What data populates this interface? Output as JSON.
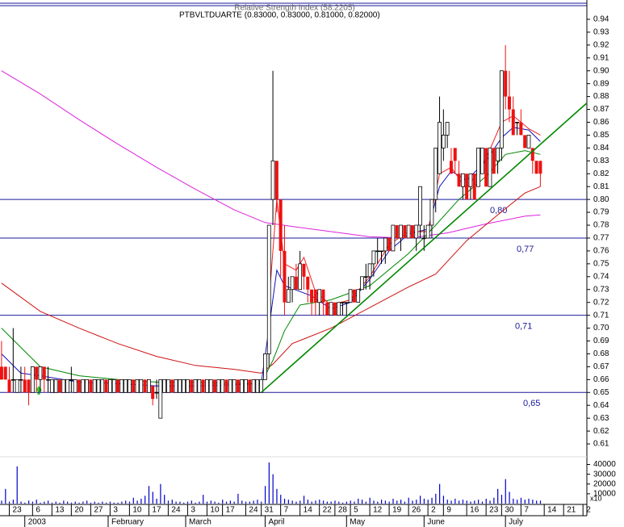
{
  "chart_data": {
    "type": "candlestick",
    "title": "PTBVLTDUARTE (0.83000, 0.83000, 0.81000, 0.82000)",
    "indicator_title": "Relative Strength Index (58.2205)",
    "xlim": [
      -0.4,
      151
    ],
    "ylim": [
      0.6,
      0.95
    ],
    "yticks": [
      0.94,
      0.93,
      0.92,
      0.91,
      {
        "value": 0.9,
        "label": "0.90"
      },
      0.89,
      0.88,
      0.87,
      0.86,
      0.85,
      0.84,
      0.83,
      0.82,
      0.81,
      {
        "value": 0.8,
        "label": "0.80"
      },
      0.79,
      0.78,
      0.77,
      0.76,
      0.75,
      0.74,
      0.73,
      0.72,
      0.71,
      {
        "value": 0.7,
        "label": "0.70"
      },
      0.69,
      0.68,
      0.67,
      0.66,
      0.65,
      0.64,
      0.63,
      0.62,
      0.61
    ],
    "xticks": [
      {
        "value": 2,
        "label": "23"
      },
      {
        "value": 8,
        "label": "6"
      },
      {
        "value": 13,
        "label": "13"
      },
      {
        "value": 18,
        "label": "20"
      },
      {
        "value": 23,
        "label": "27"
      },
      {
        "value": 28,
        "label": "3"
      },
      {
        "value": 33,
        "label": "10"
      },
      {
        "value": 38,
        "label": "17"
      },
      {
        "value": 43,
        "label": "24"
      },
      {
        "value": 48,
        "label": "3"
      },
      {
        "value": 53,
        "label": "10"
      },
      {
        "value": 57,
        "label": "17"
      },
      {
        "value": 63,
        "label": "24"
      },
      {
        "value": 67,
        "label": "31"
      },
      {
        "value": 72,
        "label": "7"
      },
      {
        "value": 77,
        "label": "14"
      },
      {
        "value": 82,
        "label": "22"
      },
      {
        "value": 86,
        "label": "28"
      },
      {
        "value": 90,
        "label": "5"
      },
      {
        "value": 95,
        "label": "12"
      },
      {
        "value": 100,
        "label": "19"
      },
      {
        "value": 105,
        "label": "26"
      },
      {
        "value": 110,
        "label": "2"
      },
      {
        "value": 114,
        "label": "9"
      },
      {
        "value": 120,
        "label": "16"
      },
      {
        "value": 125,
        "label": "23"
      },
      {
        "value": 129,
        "label": "30"
      },
      {
        "value": 134,
        "label": "7"
      },
      {
        "value": 140,
        "label": "14"
      },
      {
        "value": 145,
        "label": "21"
      },
      {
        "value": 150,
        "label": "2"
      }
    ],
    "month_ticks": [
      {
        "value": 6,
        "label": "2003"
      },
      {
        "value": 27.5,
        "label": "February"
      },
      {
        "value": 47.5,
        "label": "March"
      },
      {
        "value": 68,
        "label": "April"
      },
      {
        "value": 89,
        "label": "May"
      },
      {
        "value": 109,
        "label": "June"
      },
      {
        "value": 130,
        "label": "July"
      }
    ],
    "up_color": "#ffffff",
    "down_color": "#ee1111",
    "open": [
      0.67,
      0.67,
      0.66,
      0.66,
      0.65,
      0.66,
      0.66,
      0.66,
      0.65,
      0.67,
      0.66,
      0.67,
      0.66,
      0.65,
      0.65,
      0.66,
      0.65,
      0.65,
      0.66,
      0.65,
      0.66,
      0.65,
      0.65,
      0.66,
      0.65,
      0.65,
      0.65,
      0.66,
      0.65,
      0.65,
      0.66,
      0.65,
      0.65,
      0.65,
      0.66,
      0.65,
      0.65,
      0.66,
      0.65,
      0.655,
      0.65,
      0.63,
      0.65,
      0.65,
      0.66,
      0.65,
      0.65,
      0.65,
      0.65,
      0.66,
      0.65,
      0.65,
      0.66,
      0.65,
      0.65,
      0.66,
      0.65,
      0.65,
      0.66,
      0.65,
      0.65,
      0.66,
      0.65,
      0.65,
      0.66,
      0.65,
      0.65,
      0.65,
      0.66,
      0.68,
      0.8,
      0.83,
      0.8,
      0.76,
      0.72,
      0.73,
      0.74,
      0.73,
      0.75,
      0.74,
      0.73,
      0.73,
      0.72,
      0.73,
      0.72,
      0.71,
      0.72,
      0.71,
      0.72,
      0.72,
      0.72,
      0.73,
      0.72,
      0.73,
      0.74,
      0.74,
      0.75,
      0.76,
      0.76,
      0.76,
      0.77,
      0.76,
      0.78,
      0.77,
      0.78,
      0.77,
      0.78,
      0.77,
      0.78,
      0.77,
      0.77,
      0.78,
      0.8,
      0.82,
      0.84,
      0.85,
      0.83,
      0.84,
      0.82,
      0.81,
      0.82,
      0.81,
      0.82,
      0.81,
      0.82,
      0.84,
      0.81,
      0.84,
      0.83,
      0.84,
      0.9,
      0.88,
      0.87,
      0.86,
      0.86,
      0.85,
      0.84,
      0.84,
      0.83,
      0.83
    ],
    "high": [
      0.69,
      0.67,
      0.67,
      0.7,
      0.66,
      0.67,
      0.67,
      0.66,
      0.67,
      0.67,
      0.67,
      0.67,
      0.67,
      0.66,
      0.66,
      0.66,
      0.66,
      0.66,
      0.67,
      0.66,
      0.66,
      0.66,
      0.66,
      0.66,
      0.66,
      0.66,
      0.66,
      0.66,
      0.66,
      0.66,
      0.66,
      0.66,
      0.66,
      0.66,
      0.66,
      0.66,
      0.66,
      0.66,
      0.66,
      0.655,
      0.66,
      0.66,
      0.66,
      0.66,
      0.66,
      0.66,
      0.66,
      0.66,
      0.66,
      0.66,
      0.66,
      0.66,
      0.66,
      0.66,
      0.66,
      0.66,
      0.66,
      0.66,
      0.66,
      0.66,
      0.66,
      0.66,
      0.66,
      0.66,
      0.66,
      0.66,
      0.66,
      0.66,
      0.68,
      0.78,
      0.9,
      0.83,
      0.8,
      0.78,
      0.74,
      0.74,
      0.75,
      0.76,
      0.75,
      0.74,
      0.73,
      0.73,
      0.73,
      0.73,
      0.72,
      0.72,
      0.72,
      0.72,
      0.72,
      0.72,
      0.73,
      0.73,
      0.73,
      0.74,
      0.75,
      0.75,
      0.76,
      0.77,
      0.76,
      0.77,
      0.77,
      0.78,
      0.78,
      0.78,
      0.78,
      0.78,
      0.78,
      0.78,
      0.81,
      0.78,
      0.78,
      0.8,
      0.84,
      0.88,
      0.87,
      0.86,
      0.84,
      0.84,
      0.83,
      0.82,
      0.82,
      0.82,
      0.82,
      0.84,
      0.84,
      0.84,
      0.84,
      0.84,
      0.84,
      0.9,
      0.92,
      0.9,
      0.88,
      0.86,
      0.87,
      0.85,
      0.85,
      0.84,
      0.83,
      0.83
    ],
    "low": [
      0.66,
      0.66,
      0.65,
      0.65,
      0.65,
      0.65,
      0.65,
      0.64,
      0.65,
      0.65,
      0.65,
      0.65,
      0.65,
      0.65,
      0.65,
      0.65,
      0.65,
      0.65,
      0.65,
      0.65,
      0.65,
      0.65,
      0.65,
      0.65,
      0.65,
      0.65,
      0.65,
      0.65,
      0.65,
      0.65,
      0.65,
      0.65,
      0.65,
      0.65,
      0.65,
      0.65,
      0.65,
      0.65,
      0.65,
      0.64,
      0.645,
      0.63,
      0.65,
      0.65,
      0.65,
      0.65,
      0.65,
      0.65,
      0.65,
      0.65,
      0.65,
      0.65,
      0.65,
      0.65,
      0.65,
      0.65,
      0.65,
      0.65,
      0.65,
      0.65,
      0.65,
      0.65,
      0.65,
      0.65,
      0.65,
      0.65,
      0.65,
      0.65,
      0.66,
      0.67,
      0.78,
      0.79,
      0.74,
      0.71,
      0.72,
      0.72,
      0.73,
      0.73,
      0.73,
      0.72,
      0.71,
      0.71,
      0.71,
      0.71,
      0.71,
      0.71,
      0.71,
      0.71,
      0.71,
      0.71,
      0.72,
      0.72,
      0.72,
      0.73,
      0.73,
      0.73,
      0.74,
      0.75,
      0.75,
      0.75,
      0.76,
      0.76,
      0.77,
      0.76,
      0.77,
      0.77,
      0.77,
      0.76,
      0.77,
      0.76,
      0.77,
      0.77,
      0.79,
      0.82,
      0.83,
      0.84,
      0.82,
      0.82,
      0.81,
      0.8,
      0.8,
      0.8,
      0.8,
      0.81,
      0.82,
      0.81,
      0.81,
      0.82,
      0.82,
      0.83,
      0.87,
      0.86,
      0.85,
      0.85,
      0.85,
      0.84,
      0.84,
      0.82,
      0.82,
      0.81
    ],
    "close": [
      0.66,
      0.66,
      0.65,
      0.66,
      0.66,
      0.66,
      0.65,
      0.65,
      0.67,
      0.66,
      0.67,
      0.66,
      0.66,
      0.66,
      0.66,
      0.65,
      0.66,
      0.66,
      0.66,
      0.66,
      0.65,
      0.66,
      0.66,
      0.65,
      0.66,
      0.66,
      0.66,
      0.65,
      0.66,
      0.66,
      0.65,
      0.66,
      0.66,
      0.66,
      0.65,
      0.66,
      0.66,
      0.65,
      0.66,
      0.645,
      0.65,
      0.66,
      0.66,
      0.66,
      0.65,
      0.66,
      0.66,
      0.66,
      0.66,
      0.65,
      0.66,
      0.66,
      0.65,
      0.66,
      0.66,
      0.65,
      0.66,
      0.66,
      0.65,
      0.66,
      0.66,
      0.65,
      0.66,
      0.66,
      0.65,
      0.66,
      0.66,
      0.66,
      0.68,
      0.78,
      0.83,
      0.8,
      0.76,
      0.72,
      0.73,
      0.74,
      0.73,
      0.75,
      0.74,
      0.73,
      0.72,
      0.72,
      0.73,
      0.72,
      0.71,
      0.72,
      0.71,
      0.72,
      0.72,
      0.72,
      0.73,
      0.72,
      0.73,
      0.74,
      0.74,
      0.75,
      0.76,
      0.76,
      0.76,
      0.77,
      0.76,
      0.78,
      0.77,
      0.78,
      0.77,
      0.78,
      0.77,
      0.78,
      0.81,
      0.77,
      0.78,
      0.8,
      0.84,
      0.86,
      0.85,
      0.86,
      0.82,
      0.83,
      0.81,
      0.82,
      0.8,
      0.82,
      0.8,
      0.84,
      0.84,
      0.81,
      0.84,
      0.82,
      0.84,
      0.9,
      0.88,
      0.87,
      0.85,
      0.86,
      0.85,
      0.84,
      0.85,
      0.83,
      0.82,
      0.82
    ],
    "volume": [
      3000,
      15000,
      2000,
      4000,
      38000,
      2000,
      1000,
      3000,
      2000,
      4000,
      1000,
      2000,
      3000,
      1000,
      2000,
      1000,
      3000,
      2000,
      1000,
      2000,
      1000,
      2000,
      3000,
      1000,
      2000,
      1000,
      2000,
      1000,
      2000,
      1000,
      1000,
      2000,
      3000,
      2000,
      6000,
      3000,
      5000,
      8000,
      18000,
      12000,
      5000,
      20000,
      9000,
      3000,
      4000,
      2000,
      2000,
      1000,
      2000,
      3000,
      1000,
      2000,
      9000,
      2000,
      3000,
      2000,
      1000,
      4000,
      2000,
      3000,
      2000,
      10000,
      3000,
      2000,
      2000,
      3000,
      4000,
      2000,
      18000,
      42000,
      30000,
      15000,
      9000,
      5000,
      4000,
      3000,
      2000,
      3000,
      8000,
      4000,
      2000,
      3000,
      4000,
      3000,
      2000,
      2000,
      3000,
      2000,
      1000,
      2000,
      3000,
      2000,
      5000,
      4000,
      2000,
      6000,
      3000,
      2000,
      4000,
      3000,
      2000,
      5000,
      3000,
      4000,
      2000,
      6000,
      3000,
      4000,
      8000,
      5000,
      4000,
      6000,
      10000,
      20000,
      8000,
      4000,
      3000,
      5000,
      3000,
      4000,
      3000,
      2000,
      3000,
      4000,
      2000,
      5000,
      3000,
      6000,
      15000,
      9000,
      25000,
      12000,
      5000,
      4000,
      6000,
      4000,
      5000,
      4000,
      3000,
      3000
    ],
    "volume_lim": [
      0,
      47000
    ],
    "volume_ticks": [
      40000,
      30000,
      20000,
      10000
    ],
    "volume_unit": "x10",
    "volume_color": "#0000cc",
    "lines": [
      {
        "color": "#dd22dd",
        "x": [
          0,
          10,
          20,
          30,
          40,
          50,
          60,
          68,
          75,
          85,
          95,
          105,
          115,
          125,
          135,
          139
        ],
        "values": [
          0.9,
          0.882,
          0.862,
          0.843,
          0.825,
          0.808,
          0.792,
          0.782,
          0.779,
          0.775,
          0.771,
          0.77,
          0.774,
          0.781,
          0.787,
          0.788
        ]
      },
      {
        "color": "#cc1111",
        "x": [
          0,
          10,
          20,
          30,
          40,
          50,
          60,
          67,
          70,
          75,
          85,
          95,
          105,
          112,
          120,
          128,
          135,
          139
        ],
        "values": [
          0.735,
          0.713,
          0.7,
          0.688,
          0.678,
          0.671,
          0.668,
          0.665,
          0.672,
          0.688,
          0.7,
          0.716,
          0.732,
          0.742,
          0.768,
          0.788,
          0.805,
          0.81
        ]
      },
      {
        "color": "#008800",
        "x": [
          0,
          5,
          10,
          20,
          30,
          40,
          50,
          60,
          67,
          70,
          73,
          77,
          85,
          95,
          105,
          112,
          118,
          125,
          130,
          135,
          139
        ],
        "values": [
          0.7,
          0.685,
          0.67,
          0.663,
          0.66,
          0.658,
          0.658,
          0.657,
          0.657,
          0.675,
          0.698,
          0.718,
          0.722,
          0.733,
          0.758,
          0.78,
          0.8,
          0.818,
          0.835,
          0.838,
          0.835
        ]
      },
      {
        "color": "#1111bb",
        "x": [
          0,
          5,
          10,
          20,
          30,
          40,
          50,
          60,
          67,
          69,
          71,
          73,
          80,
          85,
          90,
          95,
          100,
          105,
          110,
          113,
          116,
          120,
          125,
          129,
          132,
          136,
          139
        ],
        "values": [
          0.68,
          0.665,
          0.663,
          0.658,
          0.657,
          0.655,
          0.655,
          0.656,
          0.657,
          0.7,
          0.745,
          0.733,
          0.725,
          0.715,
          0.72,
          0.738,
          0.76,
          0.773,
          0.777,
          0.81,
          0.822,
          0.815,
          0.83,
          0.848,
          0.856,
          0.854,
          0.845
        ]
      },
      {
        "color": "#ee2222",
        "x": [
          69,
          71,
          73,
          76,
          78,
          81,
          85,
          90,
          95,
          100,
          105,
          110,
          113,
          116,
          120,
          125,
          129,
          132,
          136,
          139
        ],
        "values": [
          0.72,
          0.8,
          0.75,
          0.745,
          0.755,
          0.728,
          0.718,
          0.722,
          0.74,
          0.765,
          0.775,
          0.775,
          0.82,
          0.825,
          0.808,
          0.832,
          0.86,
          0.865,
          0.855,
          0.85
        ]
      }
    ],
    "trendline": {
      "color": "#008800",
      "x": [
        67,
        151
      ],
      "values": [
        0.65,
        0.875
      ]
    },
    "levels": [
      {
        "value": 0.8,
        "label": "0,80"
      },
      {
        "value": 0.77,
        "label": "0,77"
      },
      {
        "value": 0.71,
        "label": "0,71"
      },
      {
        "value": 0.65,
        "label": "0,65"
      }
    ],
    "level_color": "#1a1a9a"
  }
}
